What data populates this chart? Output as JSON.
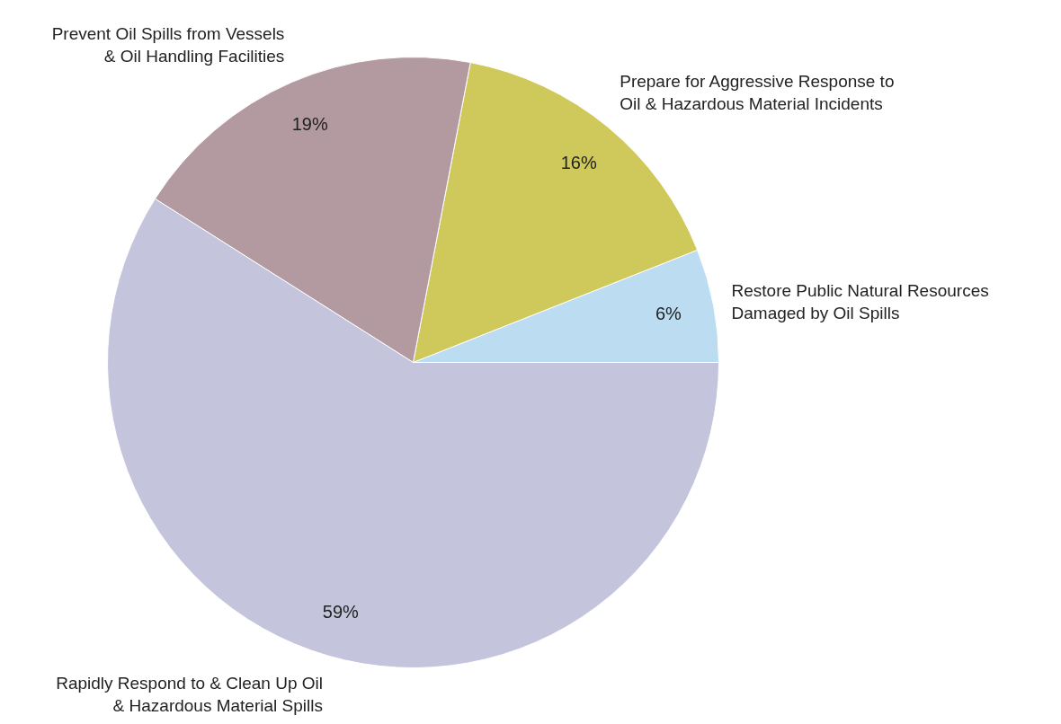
{
  "chart_data": {
    "type": "pie",
    "categories": [
      "Restore Public Natural Resources\nDamaged by Oil Spills",
      "Prepare for Aggressive Response to\nOil & Hazardous Material Incidents",
      "Prevent Oil Spills from Vessels\n& Oil Handling Facilities",
      "Rapidly Respond to & Clean Up Oil\n& Hazardous Material Spills"
    ],
    "values": [
      6,
      16,
      19,
      59
    ],
    "value_labels": [
      "6%",
      "16%",
      "19%",
      "59%"
    ],
    "colors": [
      "#bcdcf2",
      "#cfc85a",
      "#b39aa0",
      "#c4c4dc"
    ]
  }
}
